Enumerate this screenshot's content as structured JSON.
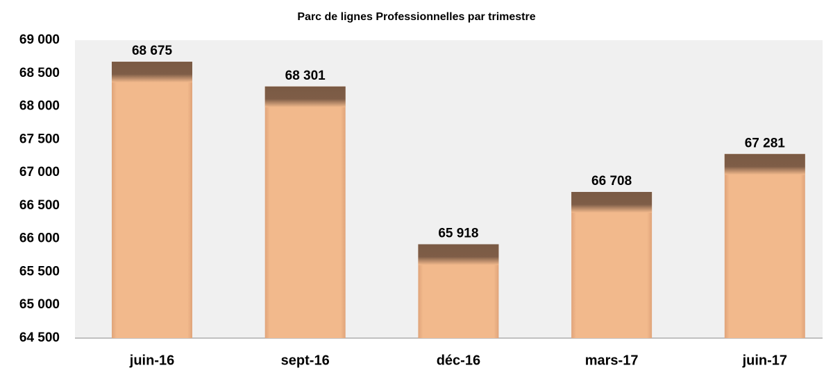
{
  "chart_data": {
    "type": "bar",
    "title": "Parc de lignes Professionnelles par trimestre",
    "categories": [
      "juin-16",
      "sept-16",
      "déc-16",
      "mars-17",
      "juin-17"
    ],
    "values": [
      68675,
      68301,
      65918,
      66708,
      67281
    ],
    "value_labels": [
      "68 675",
      "68 301",
      "65 918",
      "66 708",
      "67 281"
    ],
    "color": "#f2b98c",
    "ylim": [
      64500,
      69000
    ],
    "yticks": [
      {
        "value": 64500,
        "label": "64 500"
      },
      {
        "value": 65000,
        "label": "65 000"
      },
      {
        "value": 65500,
        "label": "65 500"
      },
      {
        "value": 66000,
        "label": "66 000"
      },
      {
        "value": 66500,
        "label": "66 500"
      },
      {
        "value": 67000,
        "label": "67 000"
      },
      {
        "value": 67500,
        "label": "67 500"
      },
      {
        "value": 68000,
        "label": "68 000"
      },
      {
        "value": 68500,
        "label": "68 500"
      },
      {
        "value": 69000,
        "label": "69 000"
      }
    ],
    "grid": false
  }
}
